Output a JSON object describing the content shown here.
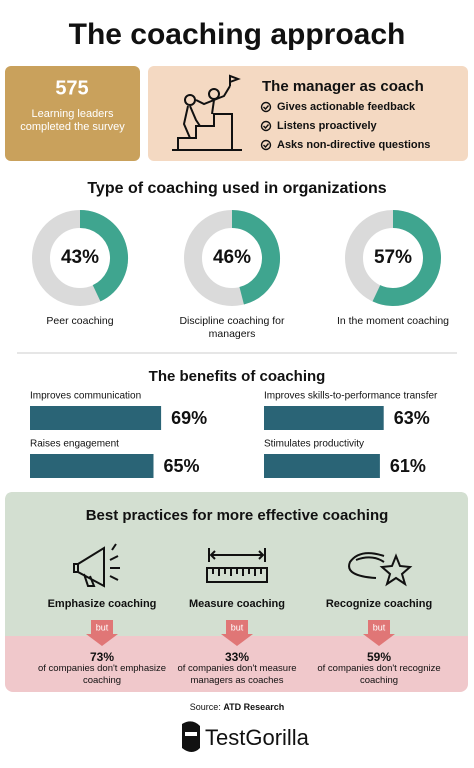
{
  "title": "The coaching approach",
  "stat": {
    "value": "575",
    "text": "Learning leaders completed the survey"
  },
  "manager": {
    "title": "The manager as coach",
    "items": [
      "Gives actionable feedback",
      "Listens proactively",
      "Asks non-directive questions"
    ]
  },
  "chart_data": [
    {
      "type": "donut",
      "title": "Type of coaching used in organizations",
      "categories": [
        "Peer coaching",
        "Discipline coaching for managers",
        "In the moment coaching"
      ],
      "values": [
        43,
        46,
        57
      ],
      "value_labels": [
        "43%",
        "46%",
        "57%"
      ],
      "color": "#3fa58f",
      "track_color": "#dadada"
    },
    {
      "type": "bar",
      "title": "The benefits of coaching",
      "categories": [
        "Improves communication",
        "Improves skills-to-performance transfer",
        "Raises engagement",
        "Stimulates productivity"
      ],
      "values": [
        69,
        63,
        65,
        61
      ],
      "value_labels": [
        "69%",
        "63%",
        "65%",
        "61%"
      ],
      "color": "#2a6476"
    }
  ],
  "practices": {
    "title": "Best practices for more effective coaching",
    "items": [
      {
        "label": "Emphasize coaching",
        "tag": "but",
        "value": "73%",
        "text": "of companies don't emphasize coaching"
      },
      {
        "label": "Measure coaching",
        "tag": "but",
        "value": "33%",
        "text": "of companies don't measure managers as coaches"
      },
      {
        "label": "Recognize coaching",
        "tag": "but",
        "value": "59%",
        "text": "of companies don't recognize coaching"
      }
    ]
  },
  "source": {
    "prefix": "Source:",
    "name": "ATD Research"
  },
  "brand": "TestGorilla"
}
